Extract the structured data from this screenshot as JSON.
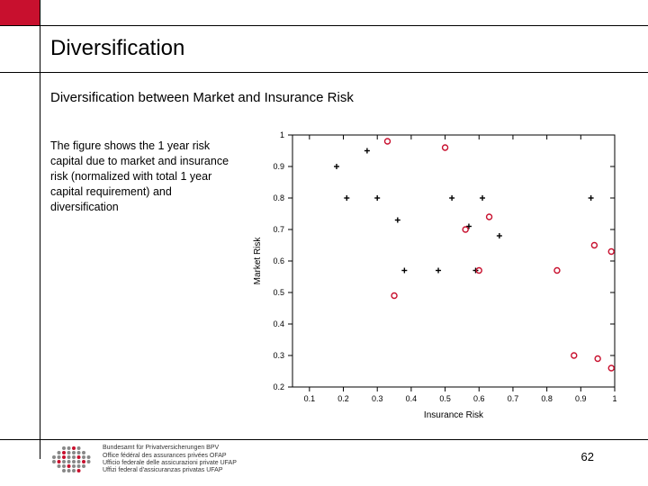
{
  "title": "Diversification",
  "subtitle": "Diversification between Market and Insurance Risk",
  "body": "The figure shows the 1 year risk capital due to market and insurance risk (normalized with total 1 year capital requirement) and diversification",
  "pageNumber": "62",
  "footer": {
    "line1": "Bundesamt für Privatversicherungen BPV",
    "line2": "Office fédéral des assurances privées OFAP",
    "line3": "Ufficio federale delle assicurazioni private UFAP",
    "line4": "Uffizi federal d'assicuranzas privatas UFAP"
  },
  "chart": {
    "type": "scatter",
    "xlabel": "Insurance Risk",
    "ylabel": "Market Risk",
    "xlim": [
      0.05,
      1.0
    ],
    "ylim": [
      0.2,
      1.0
    ],
    "xticks": [
      0.1,
      0.2,
      0.3,
      0.4,
      0.5,
      0.6,
      0.7,
      0.8,
      0.9,
      1.0
    ],
    "yticks": [
      0.2,
      0.3,
      0.4,
      0.5,
      0.6,
      0.7,
      0.8,
      0.9,
      1.0
    ],
    "background_color": "#ffffff",
    "axis_color": "#000000",
    "tick_color": "#000000",
    "label_fontsize": 10,
    "tick_fontsize": 9,
    "plus_color": "#000000",
    "circle_color": "#c8102e",
    "marker_size": 6,
    "plus_points": [
      [
        0.18,
        0.9
      ],
      [
        0.27,
        0.95
      ],
      [
        0.21,
        0.8
      ],
      [
        0.3,
        0.8
      ],
      [
        0.52,
        0.8
      ],
      [
        0.61,
        0.8
      ],
      [
        0.93,
        0.8
      ],
      [
        0.36,
        0.73
      ],
      [
        0.57,
        0.71
      ],
      [
        0.66,
        0.68
      ],
      [
        0.38,
        0.57
      ],
      [
        0.48,
        0.57
      ],
      [
        0.59,
        0.57
      ]
    ],
    "circle_points": [
      [
        0.33,
        0.98
      ],
      [
        0.5,
        0.96
      ],
      [
        0.63,
        0.74
      ],
      [
        0.56,
        0.7
      ],
      [
        0.94,
        0.65
      ],
      [
        0.99,
        0.63
      ],
      [
        0.6,
        0.57
      ],
      [
        0.83,
        0.57
      ],
      [
        0.35,
        0.49
      ],
      [
        0.88,
        0.3
      ],
      [
        0.95,
        0.29
      ],
      [
        0.99,
        0.26
      ]
    ]
  },
  "logo": {
    "red_color": "#c8102e",
    "gray_color": "#888888"
  }
}
